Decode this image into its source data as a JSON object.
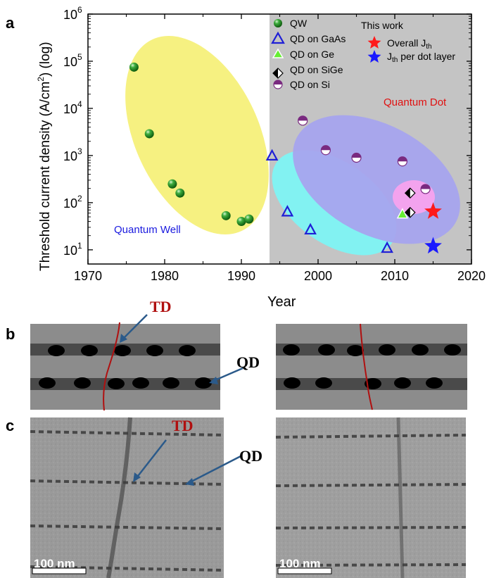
{
  "panels": {
    "a": "a",
    "b": "b",
    "c": "c"
  },
  "chart_data": {
    "type": "scatter",
    "xlabel": "Year",
    "ylabel": "Threshold current density (A/cm",
    "ylabel_sup": "2",
    "ylabel_tail": ") (log)",
    "xlim": [
      1970,
      2020
    ],
    "ylim": [
      5,
      1000000
    ],
    "yscale": "log",
    "x_ticks": [
      "1970",
      "1980",
      "1990",
      "2000",
      "2010",
      "2020"
    ],
    "y_ticks": [
      {
        "base": "10",
        "exp": "6"
      },
      {
        "base": "10",
        "exp": "5"
      },
      {
        "base": "10",
        "exp": "4"
      },
      {
        "base": "10",
        "exp": "3"
      },
      {
        "base": "10",
        "exp": "2"
      },
      {
        "base": "10",
        "exp": "1"
      }
    ],
    "shaded_region_start_year": 1993,
    "region_labels": {
      "qw": "Quantum Well",
      "qd": "Quantum Dot"
    },
    "legend_title": "This work",
    "series": [
      {
        "name": "QW",
        "marker": "green-sphere",
        "color": "#2e8b2e",
        "points": [
          [
            1976,
            75000
          ],
          [
            1978,
            2900
          ],
          [
            1981,
            250
          ],
          [
            1982,
            160
          ],
          [
            1988,
            53
          ],
          [
            1990,
            40
          ],
          [
            1991,
            45
          ]
        ]
      },
      {
        "name": "QD on GaAs",
        "marker": "triangle-open",
        "color": "#1f1fd6",
        "points": [
          [
            1994,
            1000
          ],
          [
            1996,
            65
          ],
          [
            1999,
            27
          ],
          [
            2009,
            11
          ]
        ]
      },
      {
        "name": "QD on Ge",
        "marker": "triangle-filled",
        "color": "#66ee33",
        "points": [
          [
            2011,
            58
          ]
        ]
      },
      {
        "name": "QD on SiGe",
        "marker": "diamond-half",
        "color": "#000000",
        "points": [
          [
            2012,
            160
          ],
          [
            2012,
            62
          ]
        ]
      },
      {
        "name": "QD on Si",
        "marker": "circle-half",
        "color": "#7a2a80",
        "points": [
          [
            1998,
            5500
          ],
          [
            2001,
            1300
          ],
          [
            2005,
            900
          ],
          [
            2011,
            750
          ],
          [
            2014,
            195
          ]
        ]
      },
      {
        "name": "Overall J",
        "name_sub": "th",
        "marker": "star",
        "color": "#ff1a1a",
        "points": [
          [
            2015,
            65
          ]
        ]
      },
      {
        "name": "J",
        "name_sub": "th",
        "name_tail": " per dot layer",
        "marker": "star",
        "color": "#1a1aff",
        "points": [
          [
            2015,
            12
          ]
        ]
      }
    ]
  },
  "panel_b": {
    "td_label": "TD",
    "qd_label": "QD"
  },
  "panel_c": {
    "td_label": "TD",
    "qd_label": "QD",
    "scale_left": "100 nm",
    "scale_right": "100 nm"
  },
  "colors": {
    "td": "#b01010",
    "arrow": "#2b5a8a",
    "qd_dot": "#000000",
    "layer": "#4a4a4a",
    "gray_bg": "#8c8c8c"
  }
}
